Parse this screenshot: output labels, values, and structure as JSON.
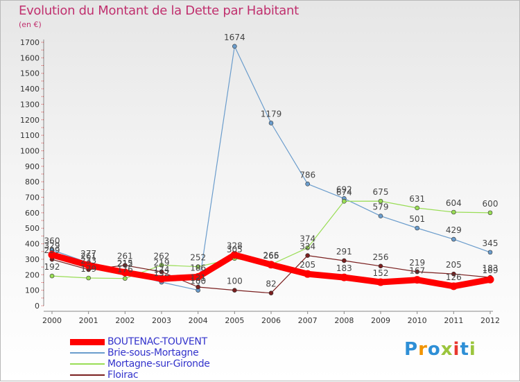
{
  "header": {
    "title": "Evolution du Montant de la Dette par Habitant",
    "subtitle": "(en €)"
  },
  "logo": {
    "text": "Proxiti",
    "colors": [
      "#2e8fd6",
      "#f29400",
      "#2e8fd6",
      "#9bc53d",
      "#e8382f",
      "#2e8fd6",
      "#9bc53d"
    ]
  },
  "chart_data": {
    "type": "line",
    "title": "Evolution du Montant de la Dette par Habitant",
    "subtitle": "(en €)",
    "x": [
      "2000",
      "2001",
      "2002",
      "2003",
      "2004",
      "2005",
      "2006",
      "2007",
      "2008",
      "2009",
      "2010",
      "2011",
      "2012"
    ],
    "ylim": [
      0,
      1700
    ],
    "yticks": [
      0,
      100,
      200,
      300,
      400,
      500,
      600,
      700,
      800,
      900,
      1000,
      1100,
      1200,
      1300,
      1400,
      1500,
      1600,
      1700
    ],
    "grid": false,
    "legend_position": "bottom-left",
    "series": [
      {
        "name": "BOUTENAC-TOUVENT",
        "color": "#ff0000",
        "values": [
          329,
          261,
          215,
          174,
          186,
          328,
          265,
          205,
          183,
          152,
          167,
          126,
          169
        ]
      },
      {
        "name": "Brie-sous-Mortagne",
        "color": "#6a9ccc",
        "values": [
          360,
          277,
          212,
          152,
          100,
          1674,
          1179,
          786,
          692,
          579,
          501,
          429,
          345
        ]
      },
      {
        "name": "Mortagne-sur-Gironde",
        "color": "#99dd55",
        "values": [
          192,
          179,
          176,
          262,
          252,
          305,
          266,
          374,
          674,
          675,
          631,
          604,
          600
        ]
      },
      {
        "name": "Floirac",
        "color": "#7a1f1f",
        "values": [
          299,
          233,
          261,
          219,
          121,
          100,
          82,
          324,
          291,
          256,
          219,
          205,
          183
        ]
      }
    ]
  }
}
